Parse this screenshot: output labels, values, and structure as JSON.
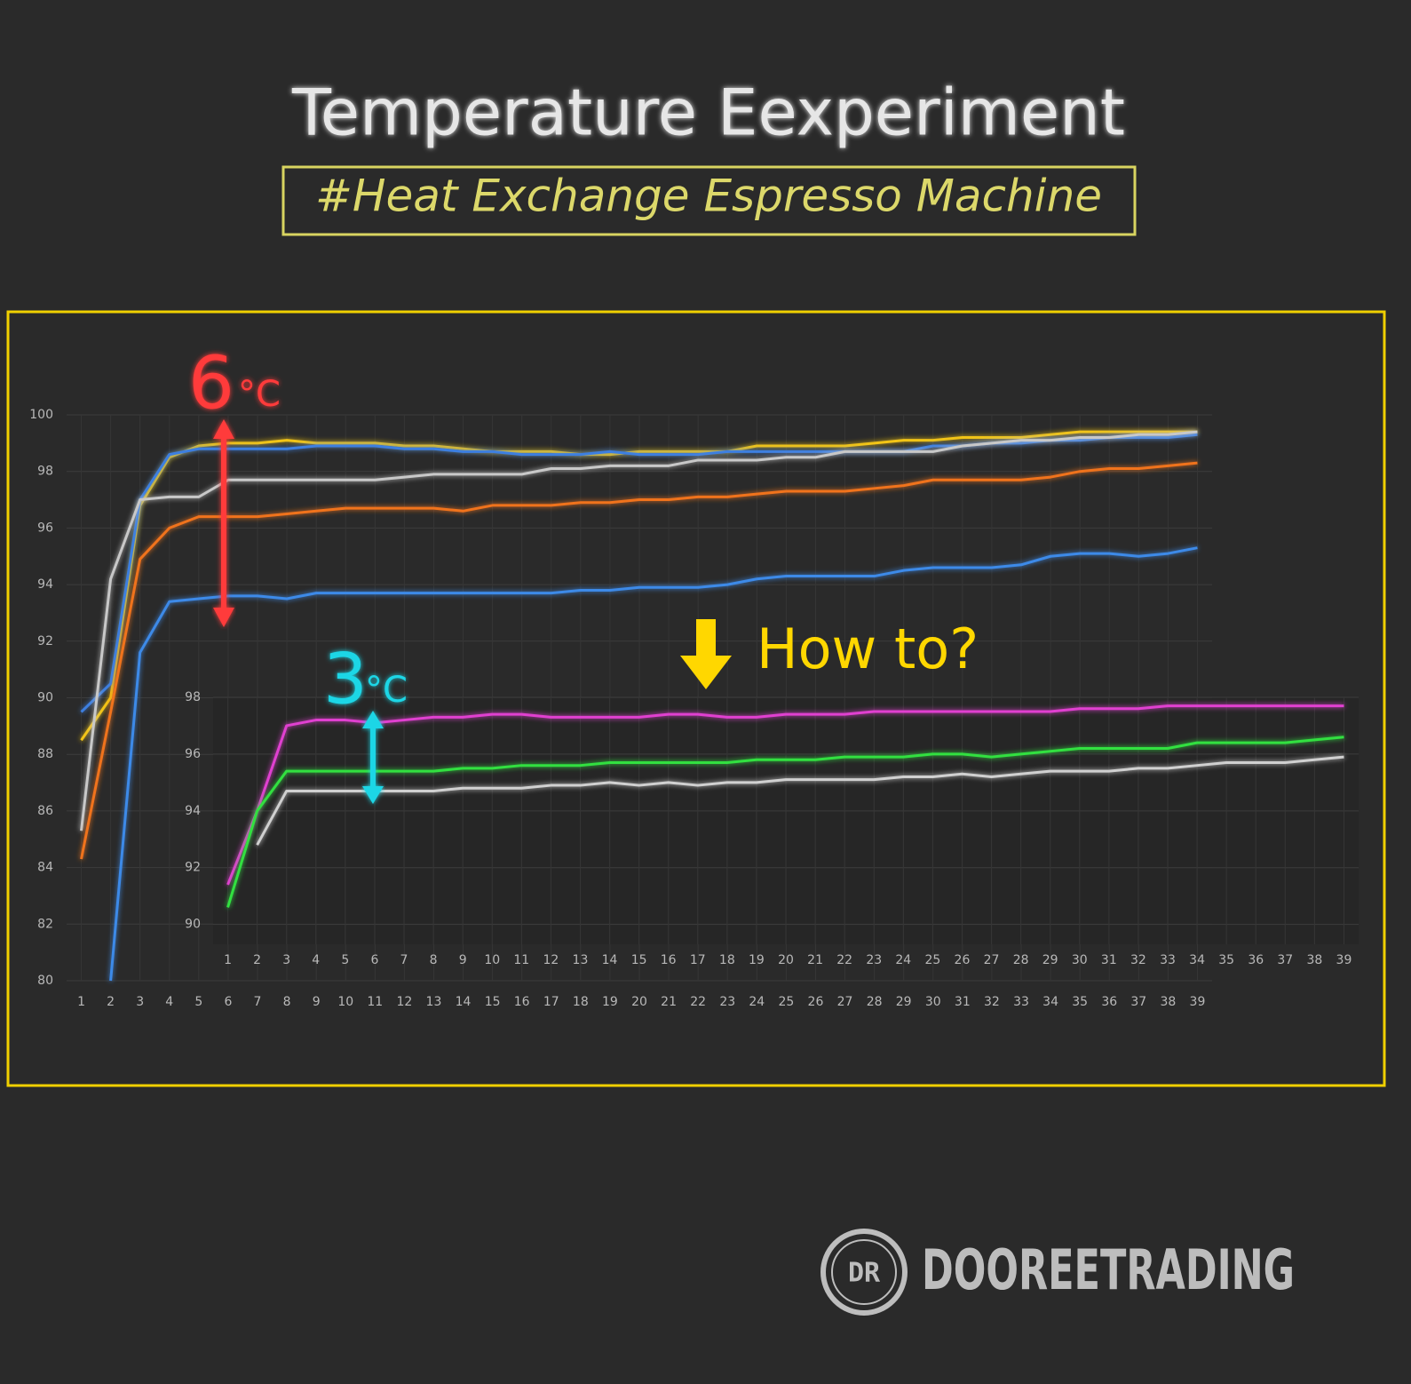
{
  "title": "Temperature Eexperiment",
  "subtitle": "#Heat Exchange Espresso Machine",
  "logo": "DR",
  "brand": "DOOREETRADING",
  "chart_data": [
    {
      "type": "line",
      "annotations": [
        "6",
        "°C",
        "How to?"
      ],
      "categories": [
        1,
        2,
        3,
        4,
        5,
        6,
        7,
        8,
        9,
        10,
        11,
        12,
        13,
        14,
        15,
        16,
        17,
        18,
        19,
        20,
        21,
        22,
        23,
        24,
        25,
        26,
        27,
        28,
        29,
        30,
        31,
        32,
        33,
        34,
        35,
        36,
        37,
        38,
        39
      ],
      "ylim": [
        80,
        100
      ],
      "yticks": [
        80,
        82,
        84,
        86,
        88,
        90,
        92,
        94,
        96,
        98,
        100
      ],
      "grid": true,
      "series": [
        {
          "color": "#f2c417",
          "values": [
            88.5,
            90,
            96.8,
            98.5,
            98.9,
            99,
            99,
            99.1,
            99,
            99,
            99,
            98.9,
            98.9,
            98.8,
            98.7,
            98.7,
            98.7,
            98.6,
            98.6,
            98.7,
            98.7,
            98.7,
            98.7,
            98.9,
            98.9,
            98.9,
            98.9,
            99,
            99.1,
            99.1,
            99.2,
            99.2,
            99.2,
            99.3,
            99.4,
            99.4,
            99.4,
            99.4,
            99.4
          ]
        },
        {
          "color": "#3d7fe0",
          "values": [
            89.5,
            90.5,
            97,
            98.6,
            98.8,
            98.8,
            98.8,
            98.8,
            98.9,
            98.9,
            98.9,
            98.8,
            98.8,
            98.7,
            98.7,
            98.6,
            98.6,
            98.6,
            98.7,
            98.6,
            98.6,
            98.6,
            98.7,
            98.7,
            98.7,
            98.7,
            98.7,
            98.7,
            98.7,
            98.9,
            98.9,
            99,
            99,
            99.1,
            99.1,
            99.2,
            99.2,
            99.2,
            99.3
          ]
        },
        {
          "color": "#c8c8c8",
          "values": [
            85.3,
            94.2,
            97,
            97.1,
            97.1,
            97.7,
            97.7,
            97.7,
            97.7,
            97.7,
            97.7,
            97.8,
            97.9,
            97.9,
            97.9,
            97.9,
            98.1,
            98.1,
            98.2,
            98.2,
            98.2,
            98.4,
            98.4,
            98.4,
            98.5,
            98.5,
            98.7,
            98.7,
            98.7,
            98.7,
            98.9,
            99,
            99.1,
            99.1,
            99.2,
            99.2,
            99.3,
            99.3,
            99.4
          ]
        },
        {
          "color": "#f0731e",
          "values": [
            84.3,
            89.5,
            94.9,
            96,
            96.4,
            96.4,
            96.4,
            96.5,
            96.6,
            96.7,
            96.7,
            96.7,
            96.7,
            96.6,
            96.8,
            96.8,
            96.8,
            96.9,
            96.9,
            97,
            97,
            97.1,
            97.1,
            97.2,
            97.3,
            97.3,
            97.3,
            97.4,
            97.5,
            97.7,
            97.7,
            97.7,
            97.7,
            97.8,
            98,
            98.1,
            98.1,
            98.2,
            98.3
          ]
        },
        {
          "color": "#3d8ae8",
          "values": [
            null,
            80,
            91.6,
            93.4,
            93.5,
            93.6,
            93.6,
            93.5,
            93.7,
            93.7,
            93.7,
            93.7,
            93.7,
            93.7,
            93.7,
            93.7,
            93.7,
            93.8,
            93.8,
            93.9,
            93.9,
            93.9,
            94,
            94.2,
            94.3,
            94.3,
            94.3,
            94.3,
            94.5,
            94.6,
            94.6,
            94.6,
            94.7,
            95,
            95.1,
            95.1,
            95,
            95.1,
            95.3
          ]
        }
      ]
    },
    {
      "type": "line",
      "annotations": [
        "3",
        "°C"
      ],
      "categories": [
        1,
        2,
        3,
        4,
        5,
        6,
        7,
        8,
        9,
        10,
        11,
        12,
        13,
        14,
        15,
        16,
        17,
        18,
        19,
        20,
        21,
        22,
        23,
        24,
        25,
        26,
        27,
        28,
        29,
        30,
        31,
        32,
        33,
        34,
        35,
        36,
        37,
        38,
        39
      ],
      "ylim": [
        89.3,
        98
      ],
      "yticks": [
        90,
        92,
        94,
        96,
        98
      ],
      "grid": true,
      "series": [
        {
          "color": "#e040d0",
          "values": [
            91.4,
            94,
            97,
            97.2,
            97.2,
            97.1,
            97.2,
            97.3,
            97.3,
            97.4,
            97.4,
            97.3,
            97.3,
            97.3,
            97.3,
            97.4,
            97.4,
            97.3,
            97.3,
            97.4,
            97.4,
            97.4,
            97.5,
            97.5,
            97.5,
            97.5,
            97.5,
            97.5,
            97.5,
            97.6,
            97.6,
            97.6,
            97.7,
            97.7,
            97.7,
            97.7,
            97.7,
            97.7,
            97.7
          ]
        },
        {
          "color": "#30e040",
          "values": [
            90.6,
            94,
            95.4,
            95.4,
            95.4,
            95.4,
            95.4,
            95.4,
            95.5,
            95.5,
            95.6,
            95.6,
            95.6,
            95.7,
            95.7,
            95.7,
            95.7,
            95.7,
            95.8,
            95.8,
            95.8,
            95.9,
            95.9,
            95.9,
            96,
            96,
            95.9,
            96,
            96.1,
            96.2,
            96.2,
            96.2,
            96.2,
            96.4,
            96.4,
            96.4,
            96.4,
            96.5,
            96.6
          ]
        },
        {
          "color": "#d0d0d0",
          "values": [
            null,
            92.8,
            94.7,
            94.7,
            94.7,
            94.7,
            94.7,
            94.7,
            94.8,
            94.8,
            94.8,
            94.9,
            94.9,
            95,
            94.9,
            95,
            94.9,
            95,
            95,
            95.1,
            95.1,
            95.1,
            95.1,
            95.2,
            95.2,
            95.3,
            95.2,
            95.3,
            95.4,
            95.4,
            95.4,
            95.5,
            95.5,
            95.6,
            95.7,
            95.7,
            95.7,
            95.8,
            95.9
          ]
        }
      ]
    }
  ]
}
